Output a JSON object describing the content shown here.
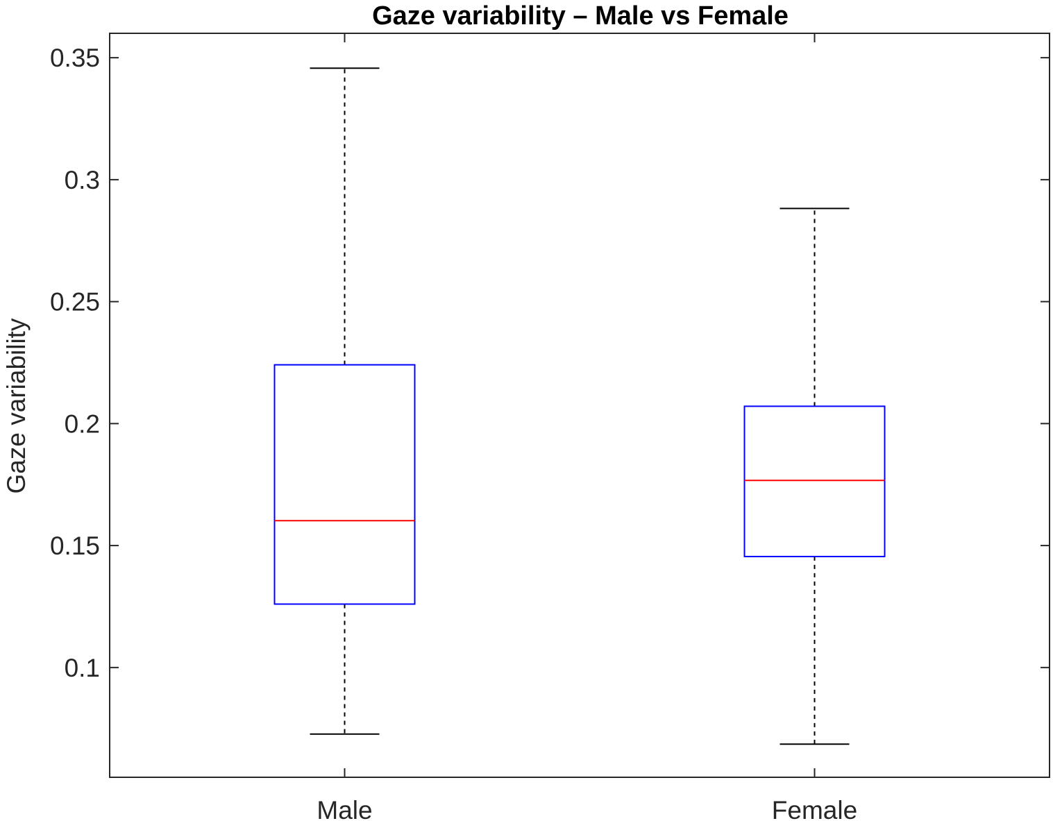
{
  "chart_data": {
    "type": "box",
    "title": "Gaze variability  – Male vs Female",
    "xlabel": "",
    "ylabel": "Gaze variability",
    "ylim": [
      0.055,
      0.36
    ],
    "yticks": [
      0.1,
      0.15,
      0.2,
      0.25,
      0.3,
      0.35
    ],
    "ytick_labels": [
      "0.1",
      "0.15",
      "0.2",
      "0.25",
      "0.3",
      "0.35"
    ],
    "categories": [
      "Male",
      "Female"
    ],
    "boxes": [
      {
        "category": "Male",
        "whisker_low": 0.0727,
        "q1": 0.126,
        "median": 0.1602,
        "q3": 0.2241,
        "whisker_high": 0.3457
      },
      {
        "category": "Female",
        "whisker_low": 0.0686,
        "q1": 0.1455,
        "median": 0.1767,
        "q3": 0.2071,
        "whisker_high": 0.2882
      }
    ],
    "grid": false,
    "legend": "none",
    "colors": {
      "box": "#0000ff",
      "median": "#ff0000",
      "whisker": "#000000",
      "axes": "#262626"
    }
  }
}
